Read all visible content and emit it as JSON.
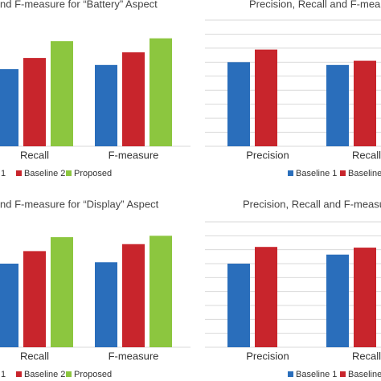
{
  "chart_data": [
    {
      "type": "bar",
      "title": "nd F-measure for “Battery” Aspect",
      "categories": [
        "Recall",
        "F-measure"
      ],
      "series": [
        {
          "name": "1",
          "color": "#2a6ebb",
          "values": [
            0.55,
            0.58
          ]
        },
        {
          "name": "Baseline 2",
          "color": "#c8252c",
          "values": [
            0.63,
            0.67
          ]
        },
        {
          "name": "Proposed",
          "color": "#8cc63f",
          "values": [
            0.75,
            0.77
          ]
        }
      ],
      "ylim": [
        0,
        0.9
      ]
    },
    {
      "type": "bar",
      "title": "Precision, Recall and F-mea",
      "categories": [
        "Precision",
        "Recall"
      ],
      "series": [
        {
          "name": "Baseline 1",
          "color": "#2a6ebb",
          "values": [
            0.6,
            0.58
          ]
        },
        {
          "name": "Baseline",
          "color": "#c8252c",
          "values": [
            0.69,
            0.61
          ]
        }
      ],
      "ylim": [
        0,
        0.9
      ],
      "yticks": [
        0,
        0.1,
        0.2,
        0.3,
        0.4,
        0.5,
        0.6,
        0.7,
        0.8,
        0.9
      ],
      "grid": true
    },
    {
      "type": "bar",
      "title": "nd F-measure for “Display” Aspect",
      "categories": [
        "Recall",
        "F-measure"
      ],
      "series": [
        {
          "name": "1",
          "color": "#2a6ebb",
          "values": [
            0.6,
            0.61
          ]
        },
        {
          "name": "Baseline 2",
          "color": "#c8252c",
          "values": [
            0.69,
            0.74
          ]
        },
        {
          "name": "Proposed",
          "color": "#8cc63f",
          "values": [
            0.79,
            0.8
          ]
        }
      ],
      "ylim": [
        0,
        0.9
      ]
    },
    {
      "type": "bar",
      "title": "Precision, Recall and F-measu",
      "categories": [
        "Precision",
        "Recall"
      ],
      "series": [
        {
          "name": "Baseline 1",
          "color": "#2a6ebb",
          "values": [
            0.6,
            0.665
          ]
        },
        {
          "name": "Baseline",
          "color": "#c8252c",
          "values": [
            0.72,
            0.715
          ]
        }
      ],
      "ylim": [
        0,
        0.9
      ],
      "yticks": [
        0,
        0.1,
        0.2,
        0.3,
        0.4,
        0.5,
        0.6,
        0.7,
        0.8,
        0.9
      ],
      "grid": true
    }
  ]
}
